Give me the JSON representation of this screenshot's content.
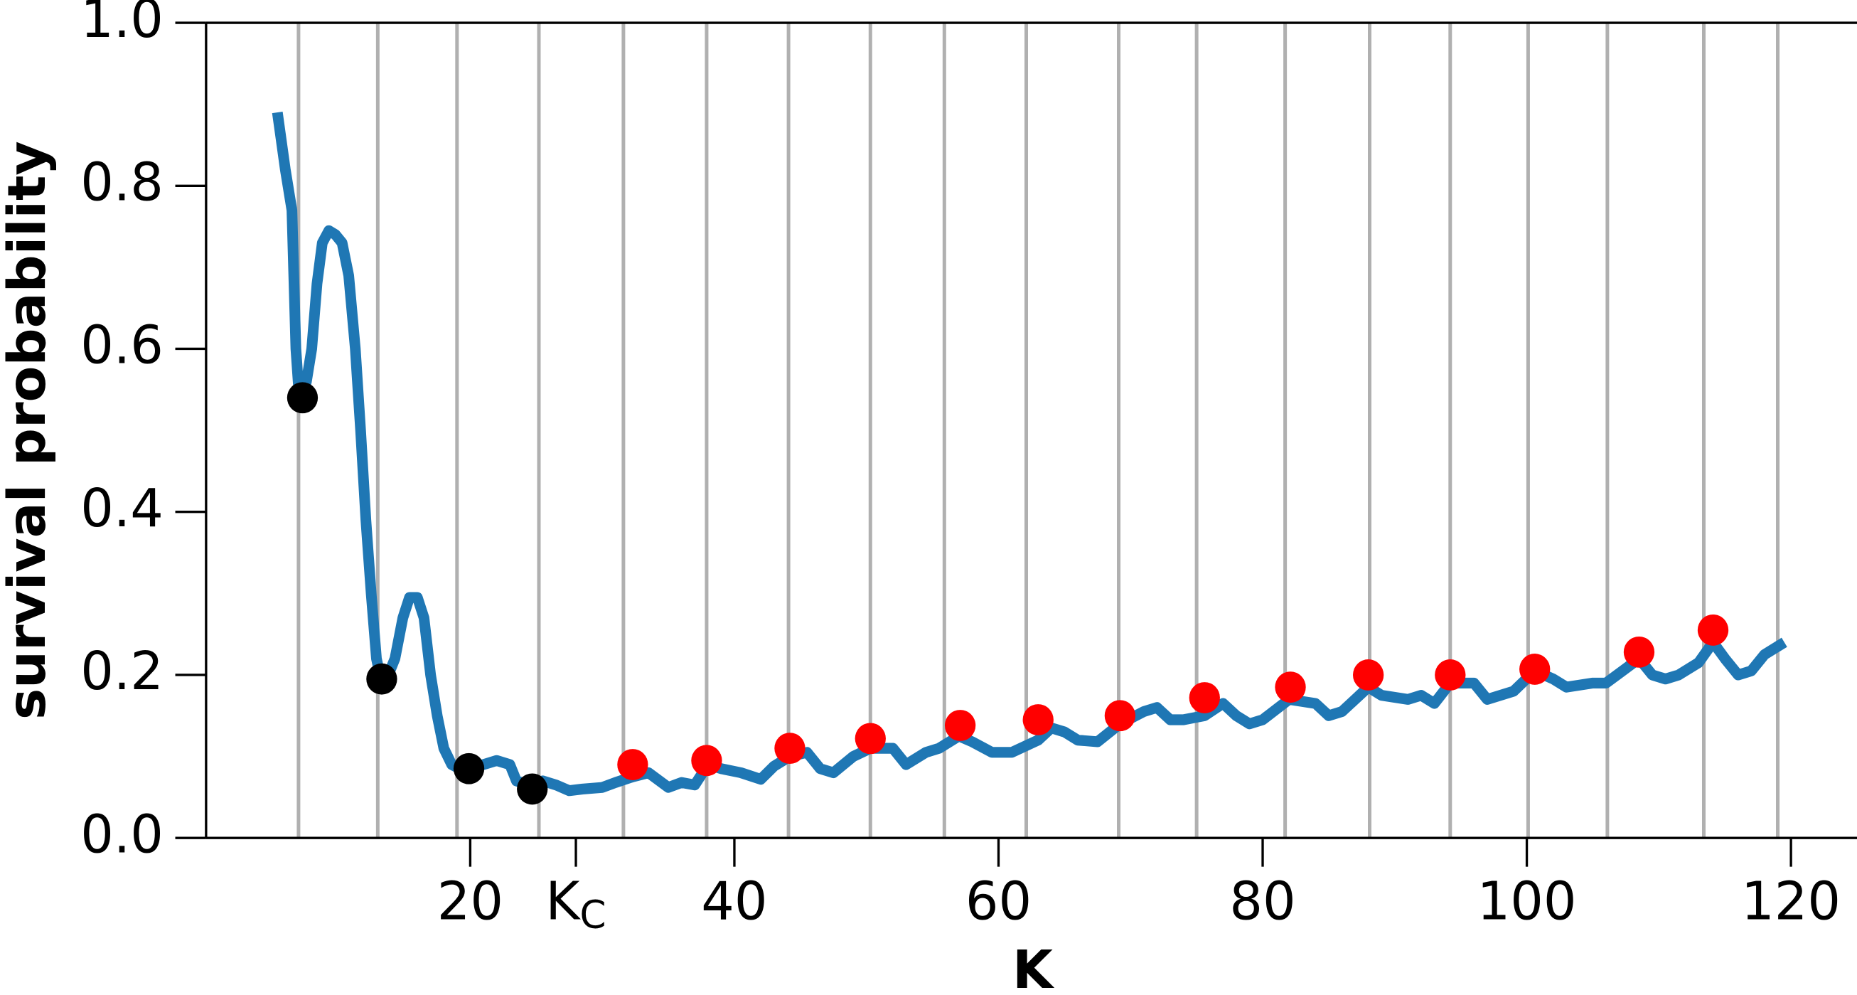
{
  "chart_data": {
    "type": "line",
    "xlabel": "K",
    "ylabel": "survival probability",
    "xlim": [
      0,
      125
    ],
    "ylim": [
      0,
      1
    ],
    "xticks": [
      20,
      {
        "value": 28,
        "label": "KC"
      },
      40,
      60,
      80,
      100,
      120
    ],
    "yticks": [
      {
        "value": 0,
        "label": "0.0"
      },
      0.2,
      0.4,
      0.6,
      0.8,
      {
        "value": 1,
        "label": "1.0"
      }
    ],
    "vlines": [
      7.0,
      13.0,
      19.0,
      25.2,
      31.6,
      37.9,
      44.1,
      50.3,
      55.9,
      62.1,
      69.1,
      75.0,
      81.7,
      88.1,
      94.2,
      100.1,
      106.1,
      113.4,
      119.0
    ],
    "series": [
      {
        "style": "line",
        "color": "#1f77b4",
        "x": [
          5.4,
          6.0,
          6.5,
          6.8,
          7.1,
          7.6,
          8.0,
          8.4,
          8.8,
          9.3,
          9.8,
          10.3,
          10.8,
          11.3,
          11.7,
          12.1,
          12.5,
          12.9,
          13.3,
          13.8,
          14.3,
          14.9,
          15.4,
          16.0,
          16.5,
          17.0,
          17.5,
          18.0,
          18.6,
          19.2,
          20,
          21,
          22,
          23,
          23.5,
          24.5,
          25.5,
          26.5,
          27.5,
          28.5,
          30,
          31,
          32.3,
          33.5,
          35,
          36,
          37,
          38,
          39,
          40.5,
          42,
          43,
          44.2,
          45.5,
          46.5,
          47.5,
          49,
          50.3,
          52,
          53,
          54.5,
          55.5,
          57,
          58,
          59.5,
          61,
          63,
          64,
          65,
          66,
          67.5,
          69.2,
          71,
          72,
          73,
          74,
          75.6,
          77,
          78,
          79,
          80,
          82,
          84,
          85,
          86,
          88,
          89,
          91,
          92,
          93,
          94.2,
          96,
          97,
          98,
          99,
          100.6,
          102,
          103,
          105,
          106,
          108.5,
          109.5,
          110.5,
          111.5,
          113,
          114.1,
          115,
          116,
          117,
          118,
          119.5
        ],
        "values": [
          0.89,
          0.82,
          0.77,
          0.6,
          0.53,
          0.56,
          0.6,
          0.68,
          0.73,
          0.745,
          0.74,
          0.73,
          0.69,
          0.6,
          0.5,
          0.39,
          0.3,
          0.22,
          0.19,
          0.2,
          0.22,
          0.27,
          0.295,
          0.295,
          0.27,
          0.2,
          0.15,
          0.11,
          0.09,
          0.085,
          0.085,
          0.09,
          0.095,
          0.09,
          0.07,
          0.065,
          0.07,
          0.065,
          0.058,
          0.06,
          0.062,
          0.068,
          0.075,
          0.08,
          0.062,
          0.068,
          0.065,
          0.09,
          0.085,
          0.08,
          0.072,
          0.088,
          0.1,
          0.105,
          0.085,
          0.08,
          0.1,
          0.11,
          0.11,
          0.09,
          0.105,
          0.11,
          0.125,
          0.118,
          0.105,
          0.105,
          0.12,
          0.135,
          0.13,
          0.12,
          0.118,
          0.14,
          0.155,
          0.16,
          0.145,
          0.145,
          0.15,
          0.165,
          0.15,
          0.14,
          0.145,
          0.17,
          0.165,
          0.15,
          0.155,
          0.185,
          0.175,
          0.17,
          0.175,
          0.165,
          0.19,
          0.19,
          0.17,
          0.175,
          0.18,
          0.205,
          0.195,
          0.185,
          0.19,
          0.19,
          0.22,
          0.2,
          0.195,
          0.2,
          0.215,
          0.24,
          0.22,
          0.2,
          0.205,
          0.225,
          0.24
        ]
      },
      {
        "style": "marker",
        "color": "#000000",
        "x": [
          7.3,
          13.3,
          19.9,
          24.7
        ],
        "values": [
          0.54,
          0.195,
          0.085,
          0.06
        ]
      },
      {
        "style": "marker",
        "color": "#ff0000",
        "x": [
          32.3,
          37.9,
          44.2,
          50.3,
          57.1,
          63.0,
          69.2,
          75.6,
          82.1,
          88.0,
          94.2,
          100.6,
          108.5,
          114.1
        ],
        "values": [
          0.09,
          0.095,
          0.11,
          0.122,
          0.138,
          0.145,
          0.15,
          0.172,
          0.185,
          0.2,
          0.2,
          0.207,
          0.228,
          0.255
        ]
      }
    ]
  }
}
